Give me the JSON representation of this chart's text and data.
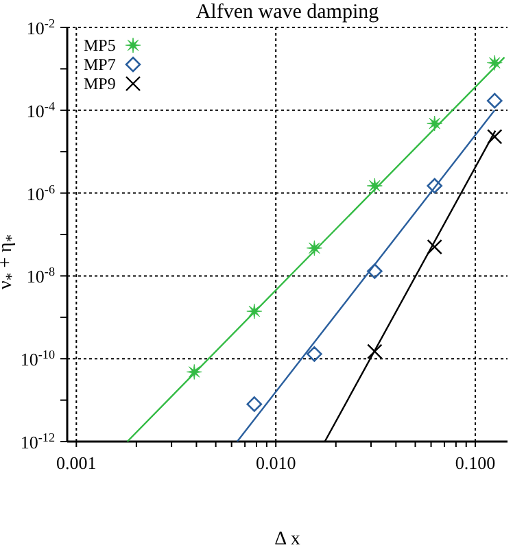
{
  "chart_data": {
    "type": "scatter",
    "title": "Alfven wave damping",
    "xlabel": "Δ x",
    "ylabel": "ν$_{*}$ + η$_{*}$",
    "log": "xy",
    "grid": true,
    "legend": "top left",
    "xlim": [
      0.0009,
      0.145
    ],
    "ylim": [
      1e-12,
      0.01
    ],
    "xticks": [
      {
        "value": 0.001,
        "label": "0.001"
      },
      {
        "value": 0.002,
        "label": null
      },
      {
        "value": 0.003,
        "label": null
      },
      {
        "value": 0.004,
        "label": null
      },
      {
        "value": 0.005,
        "label": null
      },
      {
        "value": 0.006,
        "label": null
      },
      {
        "value": 0.007,
        "label": null
      },
      {
        "value": 0.008,
        "label": null
      },
      {
        "value": 0.009,
        "label": null
      },
      {
        "value": 0.01,
        "label": "0.010"
      },
      {
        "value": 0.02,
        "label": null
      },
      {
        "value": 0.03,
        "label": null
      },
      {
        "value": 0.04,
        "label": null
      },
      {
        "value": 0.05,
        "label": null
      },
      {
        "value": 0.06,
        "label": null
      },
      {
        "value": 0.07,
        "label": null
      },
      {
        "value": 0.08,
        "label": null
      },
      {
        "value": 0.09,
        "label": null
      },
      {
        "value": 0.1,
        "label": "0.100"
      }
    ],
    "yticks": [
      {
        "value": 1e-12,
        "label": "10$^{-12}$"
      },
      {
        "value": 1e-11,
        "label": null
      },
      {
        "value": 1e-10,
        "label": "10$^{-10}$"
      },
      {
        "value": 1e-09,
        "label": null
      },
      {
        "value": 1e-08,
        "label": "10$^{-8}$"
      },
      {
        "value": 1e-07,
        "label": null
      },
      {
        "value": 1e-06,
        "label": "10$^{-6}$"
      },
      {
        "value": 1e-05,
        "label": null
      },
      {
        "value": 0.0001,
        "label": "10$^{-4}$"
      },
      {
        "value": 0.001,
        "label": null
      },
      {
        "value": 0.01,
        "label": "10$^{-2}$"
      }
    ],
    "series": [
      {
        "name": "MP5",
        "marker": "star",
        "color": "#33bb44",
        "x": [
          0.0039,
          0.0078,
          0.0156,
          0.0313,
          0.0625,
          0.125
        ],
        "values": [
          4.8e-11,
          1.4e-09,
          4.7e-08,
          1.5e-06,
          4.8e-05,
          0.0014
        ]
      },
      {
        "name": "MP7",
        "marker": "diamond",
        "color": "#2a5f9e",
        "x": [
          0.0078,
          0.0156,
          0.0313,
          0.0625,
          0.125
        ],
        "values": [
          8e-12,
          1.3e-10,
          1.3e-08,
          1.5e-06,
          0.00017
        ]
      },
      {
        "name": "MP9",
        "marker": "cross",
        "color": "#000000",
        "x": [
          0.0313,
          0.0625,
          0.125
        ],
        "values": [
          1.5e-10,
          5e-08,
          2.3e-05
        ]
      },
      {
        "type": "line",
        "marker": "none",
        "color": "#33bb44",
        "x": [
          0.0018,
          0.14
        ],
        "values": [
          1e-12,
          0.0019
        ]
      },
      {
        "type": "line",
        "marker": "none",
        "color": "#2a5f9e",
        "x": [
          0.0064,
          0.125
        ],
        "values": [
          1e-12,
          0.0001
        ]
      },
      {
        "type": "line",
        "marker": "none",
        "color": "#000000",
        "x": [
          0.0176,
          0.126
        ],
        "values": [
          1e-12,
          3.2e-05
        ]
      }
    ]
  }
}
